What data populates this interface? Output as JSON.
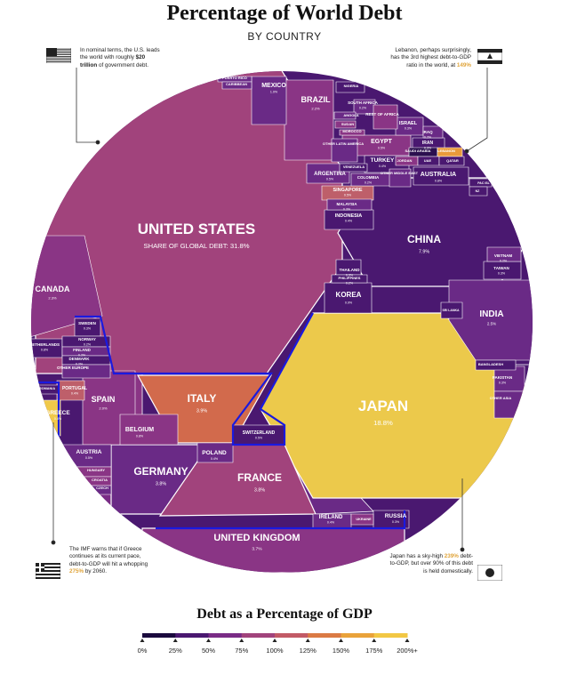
{
  "header": {
    "title": "Percentage of World Debt",
    "subtitle": "BY COUNTRY"
  },
  "annotations": {
    "us": {
      "pre": "In nominal terms, the U.S. leads the world with roughly ",
      "bold": "$20 trillion",
      "post": " of government debt."
    },
    "lebanon": {
      "pre": "Lebanon, perhaps surprisingly, has the 3rd highest debt-to-GDP ratio in the world, at ",
      "hl": "149%"
    },
    "greece": {
      "pre": "The IMF warns that if Greece continues at its current pace, debt-to-GDP will hit a whopping ",
      "hl": "275%",
      "post": " by 2060."
    },
    "japan": {
      "pre": "Japan has a sky-high ",
      "hl": "239%",
      "post": " debt-to-GDP, but over 90% of this debt is held domestically."
    }
  },
  "colors": {
    "c0": "#2b0f4f",
    "c1": "#4a1870",
    "c2": "#6a2a86",
    "c3": "#8a3585",
    "c4": "#a1437c",
    "c5": "#be5f6a",
    "c6": "#d26a4c",
    "c7": "#e99a3b",
    "c8": "#f0c94a",
    "japan": "#ecc94b",
    "border": "#ffffff",
    "highlight": "#1a1adf"
  },
  "chart_data": {
    "type": "treemap",
    "title": "Percentage of World Debt",
    "subtitle": "BY COUNTRY",
    "legend_title": "Debt as a Percentage of GDP",
    "legend_ticks": [
      "0%",
      "25%",
      "50%",
      "75%",
      "100%",
      "125%",
      "150%",
      "175%",
      "200%+"
    ],
    "legend_colors": [
      "#1a0a3d",
      "#4a1870",
      "#7a2c86",
      "#a1437c",
      "#c25a66",
      "#db7a44",
      "#e9a23a",
      "#f2c744"
    ],
    "cells": [
      {
        "name": "UNITED STATES",
        "sub": "SHARE OF GLOBAL DEBT:",
        "share": "31.8%",
        "color": "c4"
      },
      {
        "name": "JAPAN",
        "share": "18.8%",
        "color": "japan"
      },
      {
        "name": "CHINA",
        "share": "7.9%",
        "color": "c1"
      },
      {
        "name": "ITALY",
        "share": "3.9%",
        "color": "c6"
      },
      {
        "name": "GERMANY",
        "share": "3.8%",
        "color": "c2"
      },
      {
        "name": "FRANCE",
        "share": "3.8%",
        "color": "c4"
      },
      {
        "name": "UNITED KINGDOM",
        "share": "3.7%",
        "color": "c3"
      },
      {
        "name": "BRAZIL",
        "share": "2.2%",
        "color": "c3"
      },
      {
        "name": "INDIA",
        "share": "2.5%",
        "color": "c2"
      },
      {
        "name": "CANADA",
        "share": "2.3%",
        "color": "c3"
      },
      {
        "name": "SPAIN",
        "share": "2.0%",
        "color": "c3"
      },
      {
        "name": "MEXICO",
        "share": "1.0%",
        "color": "c2"
      },
      {
        "name": "KOREA",
        "share": "0.9%",
        "color": "c1"
      },
      {
        "name": "BELGIUM",
        "share": "0.8%",
        "color": "c3"
      },
      {
        "name": "NETHERLANDS",
        "share": "0.8%",
        "color": "c1"
      },
      {
        "name": "AUSTRALIA",
        "share": "0.8%",
        "color": "c1"
      },
      {
        "name": "EGYPT",
        "share": "0.5%",
        "color": "c3"
      },
      {
        "name": "AUSTRIA",
        "share": "0.5%",
        "color": "c2"
      },
      {
        "name": "SWITZERLAND",
        "share": "0.5%",
        "color": "c1"
      },
      {
        "name": "SINGAPORE",
        "share": "0.5%",
        "color": "c5"
      },
      {
        "name": "ARGENTINA",
        "share": "0.5%",
        "color": "c2"
      },
      {
        "name": "PORTUGAL",
        "share": "0.4%",
        "color": "c5"
      },
      {
        "name": "POLAND",
        "share": "0.4%",
        "color": "c2"
      },
      {
        "name": "IRELAND",
        "share": "0.4%",
        "color": "c2"
      },
      {
        "name": "GREECE",
        "share": "0.4%",
        "color": "c8"
      },
      {
        "name": "TURKEY",
        "share": "0.4%",
        "color": "c1"
      },
      {
        "name": "INDONESIA",
        "share": "0.4%",
        "color": "c1"
      },
      {
        "name": "ISRAEL",
        "share": "0.3%",
        "color": "c2"
      },
      {
        "name": "IRAN",
        "share": "0.3%",
        "color": "c1"
      },
      {
        "name": "RUSSIA",
        "share": "0.3%",
        "color": "c1"
      },
      {
        "name": "SWEDEN",
        "share": "0.3%",
        "color": "c1"
      },
      {
        "name": "THAILAND",
        "share": "0.3%",
        "color": "c1"
      },
      {
        "name": "MALAYSIA",
        "share": "0.3%",
        "color": "c2"
      },
      {
        "name": "TAIWAN",
        "share": "0.3%",
        "color": "c1"
      },
      {
        "name": "PAKISTAN",
        "share": "0.3%",
        "color": "c2"
      },
      {
        "name": "NORWAY",
        "share": "0.2%",
        "color": "c1"
      },
      {
        "name": "FINLAND",
        "share": "0.2%",
        "color": "c2"
      },
      {
        "name": "DENMARK",
        "share": "0.2%",
        "color": "c1"
      },
      {
        "name": "COLOMBIA",
        "share": "0.2%",
        "color": "c2"
      },
      {
        "name": "VIETNAM",
        "share": "0.2%",
        "color": "c2"
      },
      {
        "name": "PHILIPPINES",
        "share": "0.2%",
        "color": "c1"
      },
      {
        "name": "SOUTH AFRICA",
        "share": "0.2%",
        "color": "c2"
      },
      {
        "name": "IRAQ",
        "share": "0.2%",
        "color": "c2"
      },
      {
        "name": "OTHER EUROPE",
        "color": "c2"
      },
      {
        "name": "OTHER LATIN AMERICA",
        "color": "c2"
      },
      {
        "name": "OTHER MIDDLE EAST",
        "color": "c2"
      },
      {
        "name": "OTHER ASIA",
        "color": "c2"
      },
      {
        "name": "REST OF AFRICA",
        "color": "c3"
      },
      {
        "name": "PUERTO RICO",
        "color": "c2"
      },
      {
        "name": "CARIBBEAN",
        "color": "c2"
      },
      {
        "name": "NIGERIA",
        "color": "c1"
      },
      {
        "name": "ANGOLA",
        "color": "c2"
      },
      {
        "name": "SUDAN",
        "color": "c3"
      },
      {
        "name": "MOROCCO",
        "color": "c3"
      },
      {
        "name": "SAUDI ARABIA",
        "color": "c0"
      },
      {
        "name": "LEBANON",
        "color": "c7"
      },
      {
        "name": "JORDAN",
        "color": "c3"
      },
      {
        "name": "UAE",
        "color": "c1"
      },
      {
        "name": "QATAR",
        "color": "c1"
      },
      {
        "name": "VENEZUELA",
        "color": "c1"
      },
      {
        "name": "PAC ISL",
        "color": "c1"
      },
      {
        "name": "NZ",
        "color": "c1"
      },
      {
        "name": "SRI LANKA",
        "color": "c1"
      },
      {
        "name": "BANGLADESH",
        "color": "c1"
      },
      {
        "name": "HUNGARY",
        "color": "c3"
      },
      {
        "name": "CROATIA",
        "color": "c3"
      },
      {
        "name": "CZECH",
        "color": "c2"
      },
      {
        "name": "ROMANIA",
        "color": "c1"
      },
      {
        "name": "UKRAINE",
        "color": "c3"
      }
    ]
  }
}
